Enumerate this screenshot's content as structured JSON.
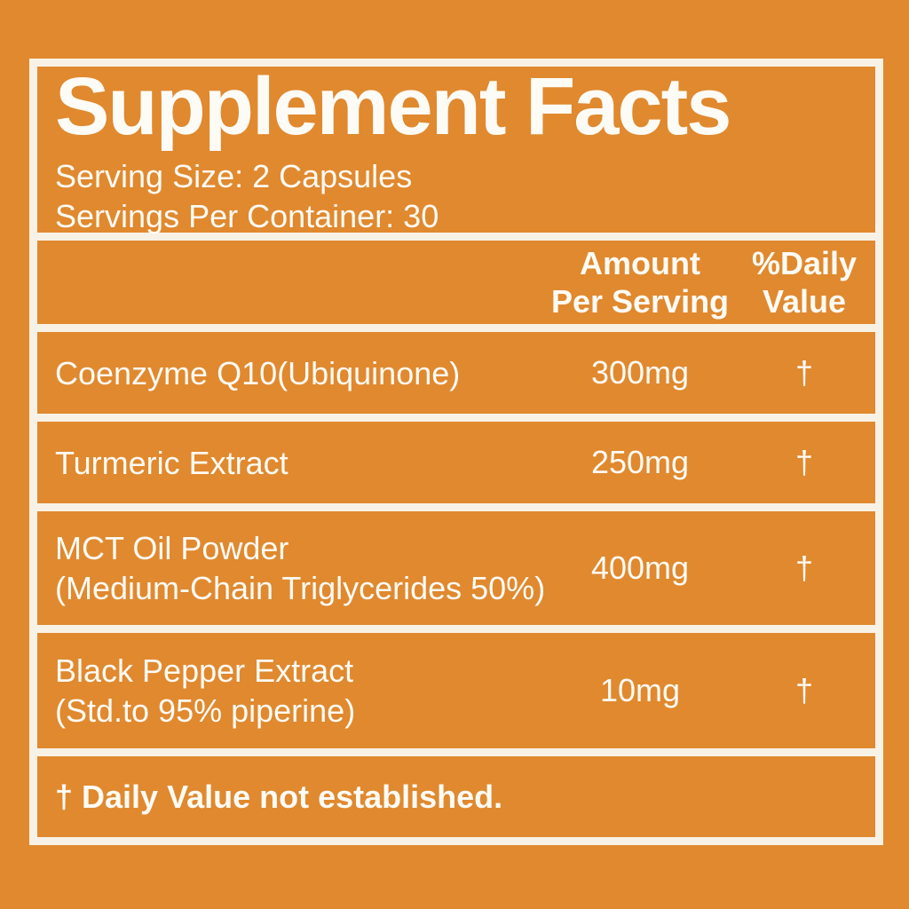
{
  "colors": {
    "background": "#E0892F",
    "line": "#F8F2E6",
    "text": "#FDFBF5"
  },
  "label": {
    "title": "Supplement Facts",
    "serving_size": "Serving Size: 2 Capsules",
    "servings_per_container": "Servings Per Container: 30",
    "header": {
      "amount": "Amount\nPer Serving",
      "daily_value": "%Daily\nValue"
    },
    "rows": [
      {
        "name": "Coenzyme Q10(Ubiquinone)",
        "amount": "300mg",
        "daily_value": "†"
      },
      {
        "name": "Turmeric Extract",
        "amount": "250mg",
        "daily_value": "†"
      },
      {
        "name": "MCT Oil Powder\n(Medium-Chain Triglycerides 50%)",
        "amount": "400mg",
        "daily_value": "†"
      },
      {
        "name": "Black Pepper Extract\n(Std.to 95% piperine)",
        "amount": "10mg",
        "daily_value": "†"
      }
    ],
    "footnote": "† Daily Value not established."
  }
}
